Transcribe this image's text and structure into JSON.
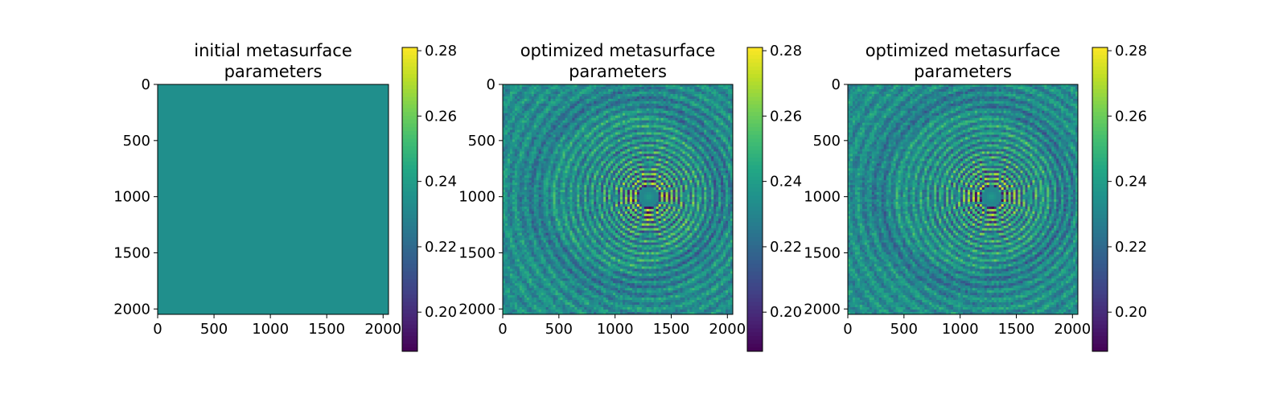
{
  "chart_data": [
    {
      "type": "heatmap",
      "title_lines": [
        "initial metasurface",
        "parameters"
      ],
      "xlabel": "",
      "ylabel": "",
      "x_ticks": [
        0,
        500,
        1000,
        1500,
        2000
      ],
      "y_ticks": [
        0,
        500,
        1000,
        1500,
        2000
      ],
      "xlim": [
        0,
        2048
      ],
      "ylim": [
        2048,
        0
      ],
      "colorbar": {
        "colormap": "viridis",
        "range": [
          0.188,
          0.281
        ],
        "ticks": [
          0.2,
          0.22,
          0.24,
          0.26,
          0.28
        ],
        "tick_labels": [
          "0.20",
          "0.22",
          "0.24",
          "0.26",
          "0.28"
        ]
      },
      "field": {
        "kind": "uniform",
        "value": 0.234
      }
    },
    {
      "type": "heatmap",
      "title_lines": [
        "optimized metasurface",
        "parameters"
      ],
      "xlabel": "",
      "ylabel": "",
      "x_ticks": [
        0,
        500,
        1000,
        1500,
        2000
      ],
      "y_ticks": [
        0,
        500,
        1000,
        1500,
        2000
      ],
      "xlim": [
        0,
        2048
      ],
      "ylim": [
        2048,
        0
      ],
      "colorbar": {
        "colormap": "viridis",
        "range": [
          0.188,
          0.281
        ],
        "ticks": [
          0.2,
          0.22,
          0.24,
          0.26,
          0.28
        ],
        "tick_labels": [
          "0.20",
          "0.22",
          "0.24",
          "0.26",
          "0.28"
        ]
      },
      "field": {
        "kind": "concentric-rings",
        "center": [
          1300,
          1000
        ],
        "base_value": 0.234,
        "core_radius": 90
      }
    },
    {
      "type": "heatmap",
      "title_lines": [
        "optimized metasurface",
        "parameters"
      ],
      "xlabel": "",
      "ylabel": "",
      "x_ticks": [
        0,
        500,
        1000,
        1500,
        2000
      ],
      "y_ticks": [
        0,
        500,
        1000,
        1500,
        2000
      ],
      "xlim": [
        0,
        2048
      ],
      "ylim": [
        2048,
        0
      ],
      "colorbar": {
        "colormap": "viridis",
        "range": [
          0.188,
          0.281
        ],
        "ticks": [
          0.2,
          0.22,
          0.24,
          0.26,
          0.28
        ],
        "tick_labels": [
          "0.20",
          "0.22",
          "0.24",
          "0.26",
          "0.28"
        ]
      },
      "field": {
        "kind": "concentric-rings",
        "center": [
          1280,
          1000
        ],
        "base_value": 0.234,
        "core_radius": 90
      }
    }
  ]
}
